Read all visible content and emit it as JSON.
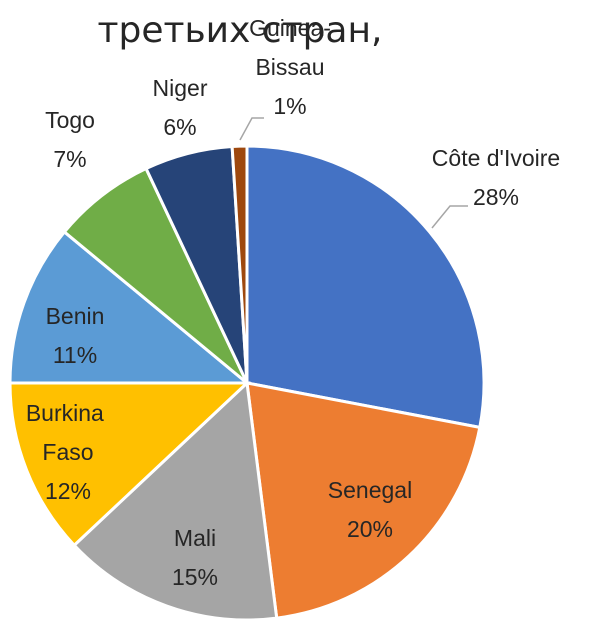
{
  "chart_data": {
    "type": "pie",
    "title": "третьих стран,",
    "categories": [
      "Côte d'Ivoire",
      "Senegal",
      "Mali",
      "Burkina Faso",
      "Benin",
      "Togo",
      "Niger",
      "Guinea-Bissau"
    ],
    "values": [
      28,
      20,
      15,
      12,
      11,
      7,
      6,
      1
    ],
    "value_labels": [
      "28%",
      "20%",
      "15%",
      "12%",
      "11%",
      "7%",
      "6%",
      "1%"
    ],
    "colors": [
      "#4472c4",
      "#ed7d31",
      "#a5a5a5",
      "#ffc000",
      "#5b9bd5",
      "#70ad47",
      "#264478",
      "#9e480e"
    ]
  }
}
